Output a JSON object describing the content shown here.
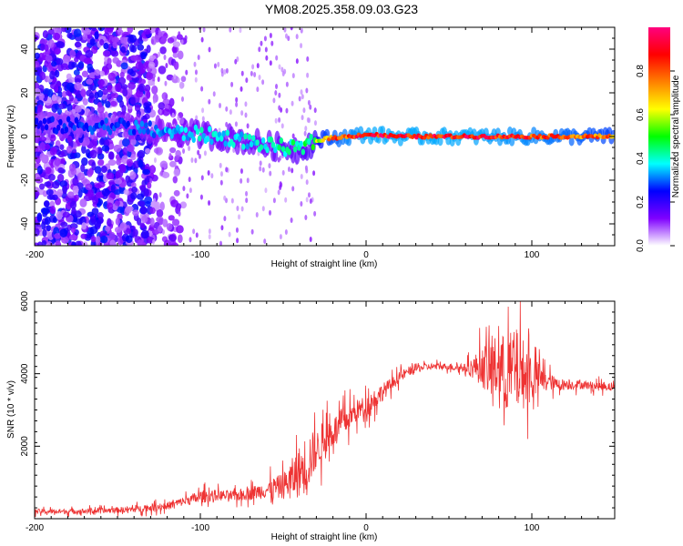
{
  "title": "YM08.2025.358.09.03.G23",
  "chart_data": [
    {
      "type": "heatmap",
      "name": "spectrogram",
      "xlabel": "Height of straight line (km)",
      "ylabel": "Frequency (Hz)",
      "xlim": [
        -200,
        150
      ],
      "ylim": [
        -50,
        50
      ],
      "xticks": [
        -200,
        -100,
        0,
        100
      ],
      "xtick_labels": [
        "-200",
        "-100",
        "0",
        "100"
      ],
      "yticks": [
        -40,
        -20,
        0,
        20,
        40
      ],
      "ytick_labels": [
        "-40",
        "-20",
        "0",
        "20",
        "40"
      ],
      "colorbar": {
        "label": "Normalized spectral amplitude",
        "range": [
          0,
          1
        ],
        "ticks": [
          0.0,
          0.2,
          0.4,
          0.6,
          0.8
        ],
        "tick_labels": [
          "0.0",
          "0.2",
          "0.4",
          "0.6",
          "0.8"
        ],
        "colormap": [
          "#ffffff",
          "#7f00ff",
          "#0000ff",
          "#00ffff",
          "#00ff00",
          "#ffff00",
          "#ff8000",
          "#ff0000",
          "#ff007f"
        ]
      },
      "ridge": {
        "description": "dominant frequency trace vs height",
        "x": [
          -200,
          -150,
          -120,
          -100,
          -80,
          -60,
          -50,
          -40,
          -33,
          -25,
          -10,
          0,
          20,
          60,
          100,
          150
        ],
        "y": [
          5,
          5,
          2,
          1,
          -1,
          -4,
          -5,
          -6,
          -3,
          -1,
          0,
          1,
          0,
          0,
          0,
          0
        ],
        "peak_amplitude": [
          0.25,
          0.3,
          0.35,
          0.4,
          0.4,
          0.4,
          0.45,
          0.45,
          0.5,
          0.8,
          0.9,
          0.95,
          0.95,
          0.95,
          0.9,
          0.8
        ]
      },
      "noise_region": {
        "x_from": -200,
        "x_to": -130,
        "amplitude": 0.15
      }
    },
    {
      "type": "line",
      "name": "snr",
      "xlabel": "Height of straight line (km)",
      "ylabel": "SNR (10 * v/v)",
      "xlim": [
        -200,
        150
      ],
      "ylim": [
        0,
        6000
      ],
      "xticks": [
        -200,
        -100,
        0,
        100
      ],
      "xtick_labels": [
        "-200",
        "-100",
        "0",
        "100"
      ],
      "yticks": [
        2000,
        4000,
        6000
      ],
      "ytick_labels": [
        "2000",
        "4000",
        "6000"
      ],
      "color": "#ee3333",
      "series": [
        {
          "name": "SNR",
          "x": [
            -200,
            -180,
            -160,
            -140,
            -120,
            -110,
            -100,
            -90,
            -80,
            -70,
            -60,
            -50,
            -45,
            -40,
            -35,
            -30,
            -25,
            -20,
            -15,
            -10,
            -5,
            0,
            5,
            10,
            15,
            20,
            25,
            30,
            40,
            50,
            60,
            70,
            75,
            80,
            85,
            90,
            95,
            100,
            105,
            110,
            115,
            120,
            130,
            140,
            150
          ],
          "y": [
            200,
            200,
            220,
            260,
            350,
            480,
            600,
            650,
            620,
            700,
            800,
            900,
            1100,
            1300,
            1600,
            1900,
            2200,
            2400,
            2600,
            2800,
            3000,
            3100,
            3300,
            3500,
            3700,
            3900,
            4050,
            4150,
            4200,
            4200,
            4150,
            4200,
            4100,
            4200,
            4000,
            4100,
            4000,
            3900,
            3850,
            3800,
            3700,
            3700,
            3700,
            3650,
            3650
          ],
          "noise": [
            120,
            120,
            120,
            150,
            180,
            200,
            300,
            250,
            250,
            300,
            400,
            600,
            900,
            1200,
            1400,
            800,
            1000,
            700,
            700,
            600,
            500,
            500,
            500,
            400,
            300,
            250,
            200,
            200,
            150,
            150,
            200,
            900,
            1400,
            1500,
            1800,
            2000,
            1600,
            1200,
            600,
            400,
            300,
            250,
            200,
            200,
            200
          ]
        }
      ]
    }
  ]
}
